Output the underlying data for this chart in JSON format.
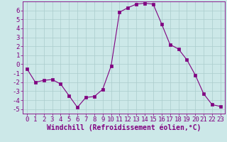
{
  "x": [
    0,
    1,
    2,
    3,
    4,
    5,
    6,
    7,
    8,
    9,
    10,
    11,
    12,
    13,
    14,
    15,
    16,
    17,
    18,
    19,
    20,
    21,
    22,
    23
  ],
  "y": [
    -0.5,
    -2.0,
    -1.8,
    -1.7,
    -2.2,
    -3.5,
    -4.8,
    -3.7,
    -3.6,
    -2.8,
    -0.2,
    5.8,
    6.3,
    6.7,
    6.8,
    6.7,
    4.5,
    2.2,
    1.7,
    0.5,
    -1.2,
    -3.3,
    -4.5,
    -4.7
  ],
  "line_color": "#800080",
  "marker": "s",
  "marker_size": 2.5,
  "bg_color": "#cce8e8",
  "grid_color": "#aacccc",
  "xlabel": "Windchill (Refroidissement éolien,°C)",
  "xlabel_fontsize": 7,
  "tick_fontsize": 6.5,
  "xlim": [
    -0.5,
    23.5
  ],
  "ylim": [
    -5.5,
    7.0
  ],
  "yticks": [
    -5,
    -4,
    -3,
    -2,
    -1,
    0,
    1,
    2,
    3,
    4,
    5,
    6
  ],
  "xticks": [
    0,
    1,
    2,
    3,
    4,
    5,
    6,
    7,
    8,
    9,
    10,
    11,
    12,
    13,
    14,
    15,
    16,
    17,
    18,
    19,
    20,
    21,
    22,
    23
  ]
}
